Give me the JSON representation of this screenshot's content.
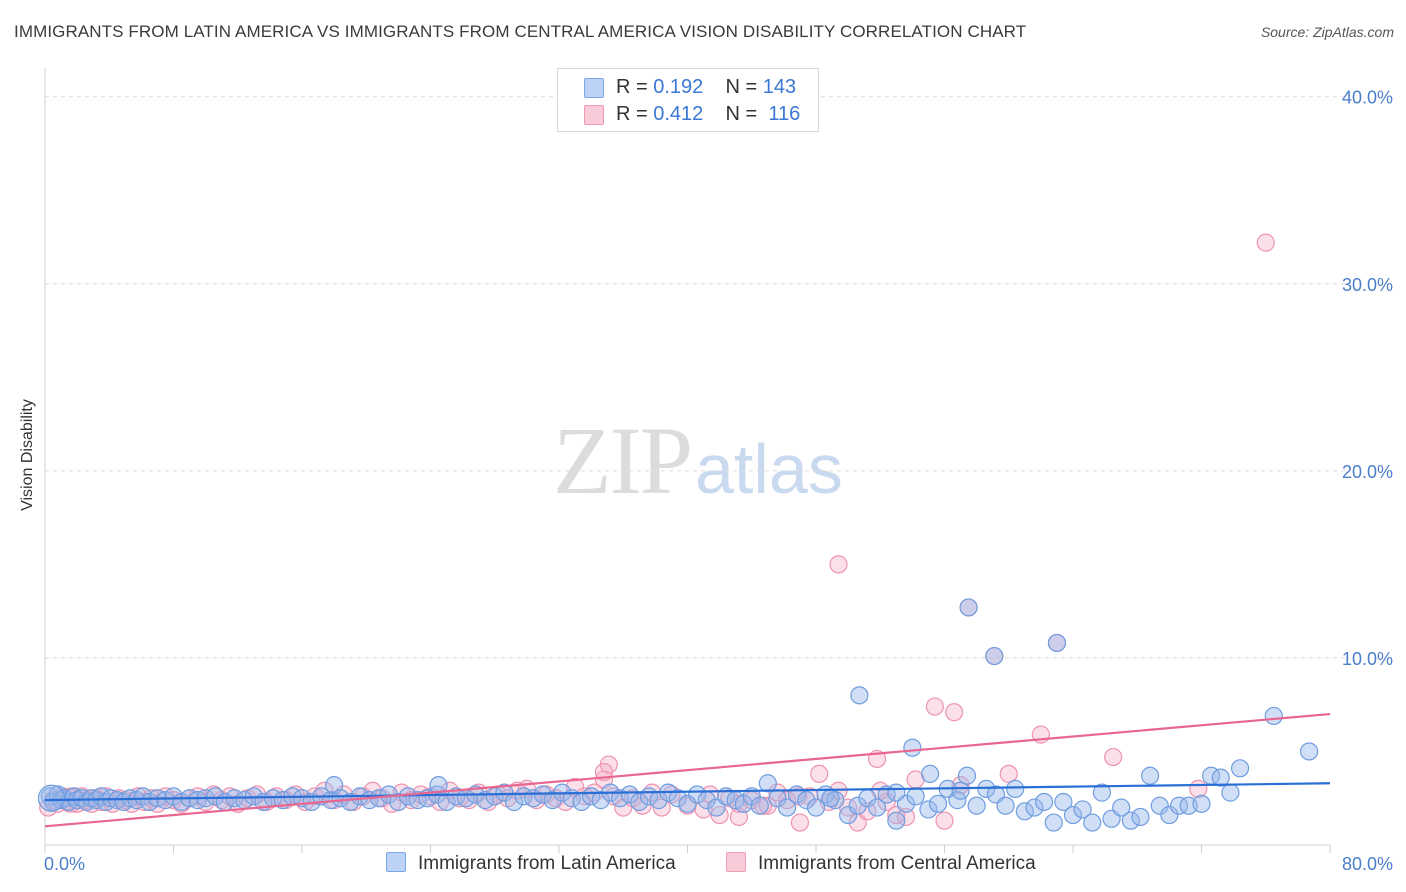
{
  "title": "IMMIGRANTS FROM LATIN AMERICA VS IMMIGRANTS FROM CENTRAL AMERICA VISION DISABILITY CORRELATION CHART",
  "source": "Source: ZipAtlas.com",
  "watermark": {
    "zip": "ZIP",
    "atlas": "atlas"
  },
  "legend_top": [
    {
      "r_label": "R =",
      "r_value": "0.192",
      "n_label": "N =",
      "n_value": "143"
    },
    {
      "r_label": "R =",
      "r_value": "0.412",
      "n_label": "N =",
      "n_value": "116"
    }
  ],
  "chart_data": {
    "type": "scatter",
    "title": "IMMIGRANTS FROM LATIN AMERICA VS IMMIGRANTS FROM CENTRAL AMERICA VISION DISABILITY CORRELATION CHART",
    "xlabel": "",
    "ylabel": "Vision Disability",
    "xlim": [
      0,
      80
    ],
    "ylim": [
      0,
      41
    ],
    "x_tick_labels": [
      "0.0%",
      "80.0%"
    ],
    "y_ticks": [
      10,
      20,
      30,
      40
    ],
    "y_tick_labels": [
      "10.0%",
      "20.0%",
      "30.0%",
      "40.0%"
    ],
    "grid": true,
    "legend_placement": "bottom-center",
    "colors": {
      "latin": "#7aa8e8",
      "central": "#f09ab4",
      "latin_line": "#2a6fd6",
      "central_line": "#e8668f",
      "tick": "#4a7ecb"
    },
    "series": [
      {
        "name": "Immigrants from Latin America",
        "r": 0.192,
        "n": 143,
        "trend": [
          [
            0,
            2.4
          ],
          [
            80,
            3.3
          ]
        ],
        "points": [
          [
            0.3,
            2.6
          ],
          [
            0.5,
            2.3
          ],
          [
            0.8,
            2.7
          ],
          [
            1.0,
            2.4
          ],
          [
            1.2,
            2.5
          ],
          [
            1.5,
            2.3
          ],
          [
            1.8,
            2.6
          ],
          [
            2.0,
            2.4
          ],
          [
            2.3,
            2.5
          ],
          [
            2.6,
            2.3
          ],
          [
            2.9,
            2.5
          ],
          [
            3.2,
            2.4
          ],
          [
            3.5,
            2.6
          ],
          [
            3.8,
            2.3
          ],
          [
            4.1,
            2.5
          ],
          [
            4.5,
            2.4
          ],
          [
            4.9,
            2.3
          ],
          [
            5.3,
            2.5
          ],
          [
            5.7,
            2.4
          ],
          [
            6.1,
            2.6
          ],
          [
            6.5,
            2.3
          ],
          [
            7.0,
            2.5
          ],
          [
            7.5,
            2.4
          ],
          [
            8.0,
            2.6
          ],
          [
            8.5,
            2.3
          ],
          [
            9.0,
            2.5
          ],
          [
            9.5,
            2.4
          ],
          [
            10.0,
            2.5
          ],
          [
            10.6,
            2.6
          ],
          [
            11.2,
            2.3
          ],
          [
            11.8,
            2.5
          ],
          [
            12.4,
            2.4
          ],
          [
            13.0,
            2.6
          ],
          [
            13.6,
            2.3
          ],
          [
            14.2,
            2.5
          ],
          [
            14.8,
            2.4
          ],
          [
            15.4,
            2.6
          ],
          [
            16.0,
            2.5
          ],
          [
            16.6,
            2.3
          ],
          [
            17.2,
            2.6
          ],
          [
            17.8,
            2.4
          ],
          [
            18.0,
            3.2
          ],
          [
            18.4,
            2.5
          ],
          [
            19.0,
            2.3
          ],
          [
            19.6,
            2.6
          ],
          [
            20.2,
            2.4
          ],
          [
            20.8,
            2.5
          ],
          [
            21.4,
            2.7
          ],
          [
            22.0,
            2.3
          ],
          [
            22.6,
            2.6
          ],
          [
            23.2,
            2.4
          ],
          [
            23.8,
            2.5
          ],
          [
            24.4,
            2.7
          ],
          [
            24.5,
            3.2
          ],
          [
            25.0,
            2.3
          ],
          [
            25.6,
            2.6
          ],
          [
            26.2,
            2.5
          ],
          [
            26.8,
            2.7
          ],
          [
            27.4,
            2.4
          ],
          [
            28.0,
            2.6
          ],
          [
            28.6,
            2.8
          ],
          [
            29.2,
            2.3
          ],
          [
            29.8,
            2.6
          ],
          [
            30.4,
            2.5
          ],
          [
            31.0,
            2.7
          ],
          [
            31.6,
            2.4
          ],
          [
            32.2,
            2.8
          ],
          [
            32.8,
            2.5
          ],
          [
            33.4,
            2.3
          ],
          [
            34.0,
            2.6
          ],
          [
            34.6,
            2.4
          ],
          [
            35.2,
            2.8
          ],
          [
            35.8,
            2.5
          ],
          [
            36.4,
            2.7
          ],
          [
            37.0,
            2.3
          ],
          [
            37.6,
            2.6
          ],
          [
            38.2,
            2.4
          ],
          [
            38.8,
            2.8
          ],
          [
            39.4,
            2.5
          ],
          [
            40.0,
            2.2
          ],
          [
            40.6,
            2.7
          ],
          [
            41.2,
            2.4
          ],
          [
            41.8,
            2.0
          ],
          [
            42.4,
            2.6
          ],
          [
            43.0,
            2.4
          ],
          [
            43.5,
            2.2
          ],
          [
            44.0,
            2.6
          ],
          [
            44.5,
            2.1
          ],
          [
            45.0,
            3.3
          ],
          [
            45.6,
            2.5
          ],
          [
            46.2,
            2.0
          ],
          [
            46.8,
            2.7
          ],
          [
            47.4,
            2.4
          ],
          [
            48.0,
            2.0
          ],
          [
            48.6,
            2.7
          ],
          [
            49.2,
            2.4
          ],
          [
            50.0,
            1.6
          ],
          [
            50.6,
            2.1
          ],
          [
            51.2,
            2.5
          ],
          [
            51.8,
            2.0
          ],
          [
            52.4,
            2.7
          ],
          [
            53.0,
            1.3
          ],
          [
            53.6,
            2.2
          ],
          [
            54.2,
            2.6
          ],
          [
            55.0,
            1.9
          ],
          [
            55.6,
            2.2
          ],
          [
            56.2,
            3.0
          ],
          [
            56.8,
            2.4
          ],
          [
            57.4,
            3.7
          ],
          [
            58.0,
            2.1
          ],
          [
            58.6,
            3.0
          ],
          [
            59.2,
            2.7
          ],
          [
            59.8,
            2.1
          ],
          [
            60.4,
            3.0
          ],
          [
            61.0,
            1.8
          ],
          [
            61.6,
            2.0
          ],
          [
            62.2,
            2.3
          ],
          [
            62.8,
            1.2
          ],
          [
            63.4,
            2.3
          ],
          [
            64.0,
            1.6
          ],
          [
            64.6,
            1.9
          ],
          [
            65.2,
            1.2
          ],
          [
            65.8,
            2.8
          ],
          [
            66.4,
            1.4
          ],
          [
            67.0,
            2.0
          ],
          [
            67.6,
            1.3
          ],
          [
            68.2,
            1.5
          ],
          [
            68.8,
            3.7
          ],
          [
            69.4,
            2.1
          ],
          [
            70.0,
            1.6
          ],
          [
            70.6,
            2.1
          ],
          [
            71.2,
            2.1
          ],
          [
            72.0,
            2.2
          ],
          [
            72.6,
            3.7
          ],
          [
            73.2,
            3.6
          ],
          [
            73.8,
            2.8
          ],
          [
            74.4,
            4.1
          ],
          [
            76.5,
            6.9
          ],
          [
            78.7,
            5.0
          ],
          [
            50.7,
            8.0
          ],
          [
            54.0,
            5.2
          ],
          [
            55.1,
            3.8
          ],
          [
            57.0,
            2.9
          ],
          [
            53.0,
            2.8
          ],
          [
            48.9,
            2.5
          ],
          [
            57.5,
            12.7
          ],
          [
            63.0,
            10.8
          ],
          [
            59.1,
            10.1
          ]
        ]
      },
      {
        "name": "Immigrants from Central America",
        "r": 0.412,
        "n": 116,
        "trend": [
          [
            0,
            1.0
          ],
          [
            80,
            7.0
          ]
        ],
        "points": [
          [
            0.2,
            2.0
          ],
          [
            0.5,
            2.4
          ],
          [
            0.8,
            2.2
          ],
          [
            1.1,
            2.6
          ],
          [
            1.4,
            2.3
          ],
          [
            1.7,
            2.5
          ],
          [
            2.0,
            2.2
          ],
          [
            2.3,
            2.6
          ],
          [
            2.6,
            2.4
          ],
          [
            2.9,
            2.2
          ],
          [
            3.2,
            2.5
          ],
          [
            3.5,
            2.3
          ],
          [
            3.8,
            2.6
          ],
          [
            4.2,
            2.2
          ],
          [
            4.6,
            2.5
          ],
          [
            5.0,
            2.4
          ],
          [
            5.4,
            2.2
          ],
          [
            5.8,
            2.6
          ],
          [
            6.2,
            2.3
          ],
          [
            6.6,
            2.5
          ],
          [
            7.0,
            2.2
          ],
          [
            7.5,
            2.6
          ],
          [
            8.0,
            2.4
          ],
          [
            8.5,
            2.2
          ],
          [
            9.0,
            2.5
          ],
          [
            9.5,
            2.6
          ],
          [
            10.0,
            2.3
          ],
          [
            10.5,
            2.7
          ],
          [
            11.0,
            2.4
          ],
          [
            11.5,
            2.6
          ],
          [
            12.0,
            2.2
          ],
          [
            12.6,
            2.5
          ],
          [
            13.2,
            2.7
          ],
          [
            13.8,
            2.3
          ],
          [
            14.4,
            2.6
          ],
          [
            15.0,
            2.4
          ],
          [
            15.6,
            2.7
          ],
          [
            16.2,
            2.3
          ],
          [
            16.8,
            2.6
          ],
          [
            17.4,
            2.9
          ],
          [
            18.0,
            2.4
          ],
          [
            18.6,
            2.7
          ],
          [
            19.2,
            2.3
          ],
          [
            19.8,
            2.6
          ],
          [
            20.4,
            2.9
          ],
          [
            21.0,
            2.5
          ],
          [
            21.6,
            2.2
          ],
          [
            22.2,
            2.8
          ],
          [
            22.8,
            2.4
          ],
          [
            23.4,
            2.7
          ],
          [
            24.0,
            2.6
          ],
          [
            24.6,
            2.3
          ],
          [
            25.2,
            2.9
          ],
          [
            25.8,
            2.5
          ],
          [
            26.4,
            2.4
          ],
          [
            27.0,
            2.8
          ],
          [
            27.6,
            2.3
          ],
          [
            28.2,
            2.7
          ],
          [
            28.8,
            2.5
          ],
          [
            29.4,
            2.9
          ],
          [
            30.0,
            3.0
          ],
          [
            30.6,
            2.4
          ],
          [
            31.2,
            2.7
          ],
          [
            31.8,
            2.5
          ],
          [
            32.4,
            2.3
          ],
          [
            33.0,
            3.1
          ],
          [
            33.6,
            2.6
          ],
          [
            34.2,
            2.8
          ],
          [
            34.8,
            3.5
          ],
          [
            35.4,
            2.6
          ],
          [
            36.0,
            2.0
          ],
          [
            36.6,
            2.5
          ],
          [
            37.2,
            2.1
          ],
          [
            37.8,
            2.8
          ],
          [
            38.4,
            2.0
          ],
          [
            39.0,
            2.7
          ],
          [
            40.0,
            2.1
          ],
          [
            41.0,
            1.9
          ],
          [
            42.0,
            1.6
          ],
          [
            42.6,
            2.5
          ],
          [
            43.2,
            2.2
          ],
          [
            44.0,
            2.4
          ],
          [
            45.0,
            2.1
          ],
          [
            45.6,
            2.8
          ],
          [
            46.2,
            2.4
          ],
          [
            47.0,
            1.2
          ],
          [
            47.6,
            2.6
          ],
          [
            48.2,
            3.8
          ],
          [
            48.8,
            2.3
          ],
          [
            49.4,
            2.9
          ],
          [
            50.0,
            2.0
          ],
          [
            50.6,
            1.2
          ],
          [
            51.2,
            1.8
          ],
          [
            51.8,
            4.6
          ],
          [
            52.4,
            2.3
          ],
          [
            53.0,
            1.6
          ],
          [
            53.6,
            1.5
          ],
          [
            54.2,
            3.5
          ],
          [
            55.4,
            7.4
          ],
          [
            56.6,
            7.1
          ],
          [
            57.0,
            3.2
          ],
          [
            60.0,
            3.8
          ],
          [
            62.0,
            5.9
          ],
          [
            66.5,
            4.7
          ],
          [
            71.8,
            3.0
          ],
          [
            76.0,
            32.2
          ],
          [
            49.4,
            15.0
          ],
          [
            59.1,
            10.1
          ],
          [
            57.5,
            12.7
          ],
          [
            63.0,
            10.8
          ],
          [
            35.1,
            4.3
          ],
          [
            34.8,
            3.9
          ],
          [
            41.4,
            2.7
          ],
          [
            44.7,
            2.1
          ],
          [
            46.9,
            2.6
          ],
          [
            43.2,
            1.5
          ],
          [
            56.0,
            1.3
          ],
          [
            52.0,
            2.9
          ]
        ]
      }
    ]
  },
  "bottom_legend": [
    {
      "label": "Immigrants from Latin America"
    },
    {
      "label": "Immigrants from Central America"
    }
  ]
}
